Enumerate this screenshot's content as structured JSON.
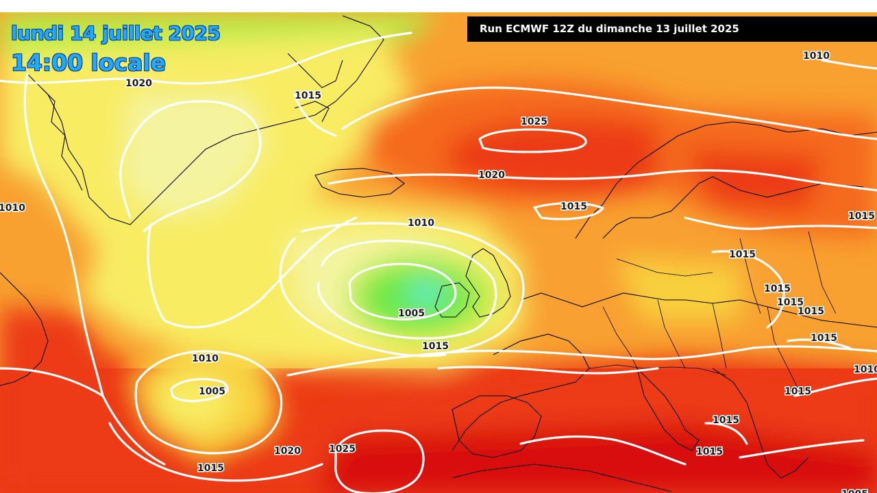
{
  "header": {
    "date_label": "lundi 14 juillet 2025",
    "time_label": "14:00 locale",
    "run_label": "Run ECMWF 12Z du dimanche 13 juillet 2025"
  },
  "colors": {
    "very_hot": "#d80808",
    "hot": "#ec3a14",
    "warm": "#f56a1e",
    "mild": "#f8a030",
    "cool": "#f8d03c",
    "cooler": "#f8ec64",
    "pale": "#f4f4a0",
    "light_green": "#b8ec48",
    "green": "#6ce848",
    "cyan": "#62ecc4",
    "isobar": "#ffffff",
    "coast": "#000000"
  },
  "isobar_labels": [
    "1020",
    "1015",
    "1010",
    "1025",
    "1020",
    "1010",
    "1010",
    "1005",
    "1015",
    "1010",
    "1005",
    "1020",
    "1015",
    "1025",
    "1015",
    "1015",
    "1015",
    "1015",
    "1015",
    "1015",
    "1015",
    "1010",
    "1015",
    "1015",
    "1015",
    "1005"
  ]
}
